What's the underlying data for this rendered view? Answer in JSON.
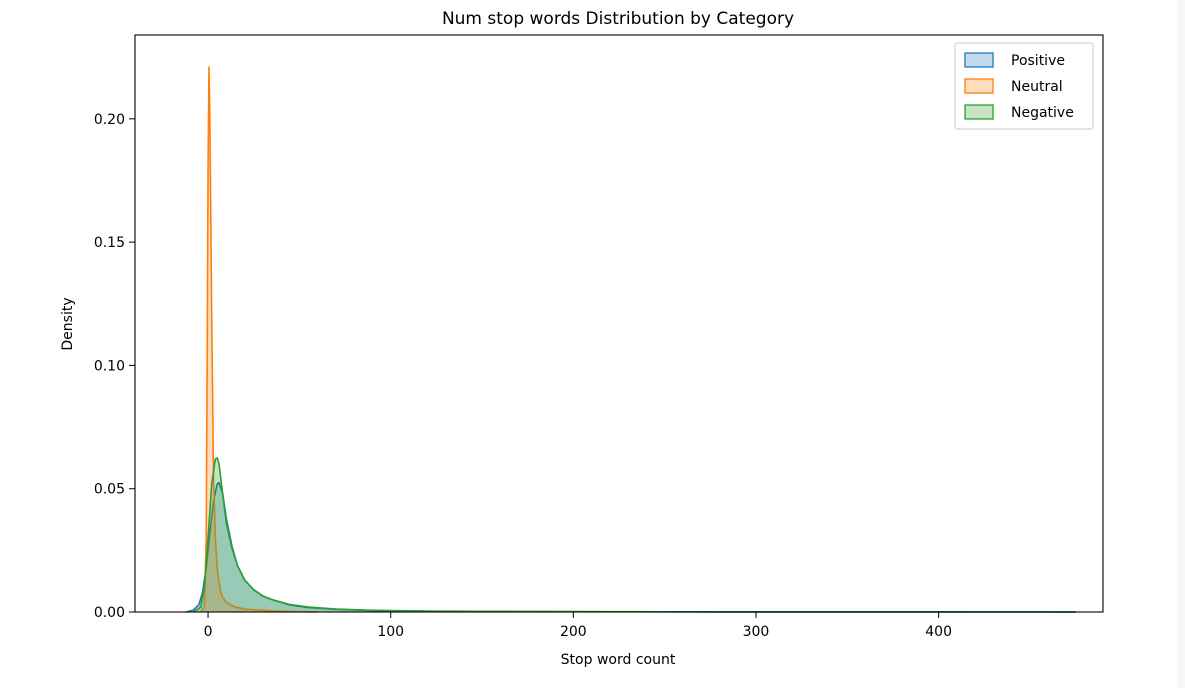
{
  "chart_data": {
    "type": "area",
    "title": "Num stop words Distribution by Category",
    "xlabel": "Stop word count",
    "ylabel": "Density",
    "xlim": [
      -40,
      490
    ],
    "ylim": [
      0,
      0.234
    ],
    "xticks": [
      0,
      100,
      200,
      300,
      400
    ],
    "yticks": [
      0.0,
      0.05,
      0.1,
      0.15,
      0.2
    ],
    "xtick_labels": [
      "0",
      "100",
      "200",
      "300",
      "400"
    ],
    "ytick_labels": [
      "0.00",
      "0.05",
      "0.10",
      "0.15",
      "0.20"
    ],
    "grid": false,
    "legend": "top-right",
    "series": [
      {
        "name": "Positive",
        "color": "#1f77b4",
        "points": [
          [
            -12,
            0
          ],
          [
            -8,
            0.0008
          ],
          [
            -5,
            0.003
          ],
          [
            -3,
            0.008
          ],
          [
            -1,
            0.018
          ],
          [
            1,
            0.032
          ],
          [
            3,
            0.045
          ],
          [
            5,
            0.052
          ],
          [
            6,
            0.0525
          ],
          [
            8,
            0.048
          ],
          [
            10,
            0.038
          ],
          [
            13,
            0.027
          ],
          [
            16,
            0.019
          ],
          [
            20,
            0.013
          ],
          [
            25,
            0.009
          ],
          [
            30,
            0.0065
          ],
          [
            35,
            0.005
          ],
          [
            45,
            0.0028
          ],
          [
            55,
            0.0018
          ],
          [
            70,
            0.0011
          ],
          [
            90,
            0.0006
          ],
          [
            120,
            0.0003
          ],
          [
            160,
            0.0002
          ],
          [
            220,
            0.0001
          ],
          [
            300,
            8e-05
          ],
          [
            400,
            6e-05
          ],
          [
            475,
            4e-05
          ]
        ]
      },
      {
        "name": "Neutral",
        "color": "#ff7f0e",
        "points": [
          [
            -4,
            0
          ],
          [
            -2,
            0.002
          ],
          [
            -1,
            0.03
          ],
          [
            -0.5,
            0.1
          ],
          [
            0,
            0.18
          ],
          [
            0.5,
            0.221
          ],
          [
            1,
            0.2
          ],
          [
            2,
            0.12
          ],
          [
            3,
            0.055
          ],
          [
            4,
            0.03
          ],
          [
            5,
            0.018
          ],
          [
            6,
            0.012
          ],
          [
            7,
            0.008
          ],
          [
            8,
            0.006
          ],
          [
            10,
            0.004
          ],
          [
            12,
            0.003
          ],
          [
            15,
            0.002
          ],
          [
            20,
            0.0012
          ],
          [
            30,
            0.0007
          ],
          [
            35,
            0.0004
          ],
          [
            45,
            0.0002
          ],
          [
            60,
            0
          ]
        ]
      },
      {
        "name": "Negative",
        "color": "#2ca02c",
        "points": [
          [
            -8,
            0
          ],
          [
            -4,
            0.002
          ],
          [
            -2,
            0.01
          ],
          [
            0,
            0.03
          ],
          [
            2,
            0.052
          ],
          [
            4,
            0.062
          ],
          [
            5,
            0.0625
          ],
          [
            6,
            0.06
          ],
          [
            8,
            0.048
          ],
          [
            10,
            0.036
          ],
          [
            13,
            0.026
          ],
          [
            16,
            0.019
          ],
          [
            20,
            0.013
          ],
          [
            25,
            0.009
          ],
          [
            30,
            0.0065
          ],
          [
            35,
            0.005
          ],
          [
            45,
            0.003
          ],
          [
            55,
            0.002
          ],
          [
            70,
            0.0012
          ],
          [
            90,
            0.0007
          ],
          [
            120,
            0.0004
          ],
          [
            160,
            0.00025
          ],
          [
            220,
            0.00015
          ],
          [
            280,
            0
          ],
          [
            475,
            0
          ]
        ]
      }
    ]
  }
}
